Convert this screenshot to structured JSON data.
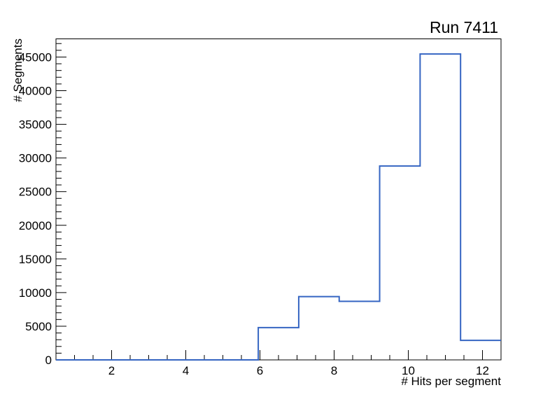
{
  "window": {
    "title": "Run 7411"
  },
  "chart_data": {
    "type": "bar",
    "style": "step-outline-histogram",
    "title": "Run 7411",
    "xlabel": "# Hits per segment",
    "ylabel": "# Segments",
    "xlim": [
      0.5,
      12.5
    ],
    "ylim": [
      0,
      47700
    ],
    "grid": false,
    "legend": "none",
    "bin_edges": [
      0.5,
      1.5909,
      2.6818,
      3.7727,
      4.8636,
      5.9545,
      7.0455,
      8.1364,
      9.2273,
      10.3182,
      11.4091,
      12.5
    ],
    "values": [
      0,
      0,
      0,
      0,
      0,
      4800,
      9400,
      8700,
      28800,
      45450,
      2900
    ],
    "x_major_ticks": [
      2,
      4,
      6,
      8,
      10,
      12
    ],
    "x_minor_tick_step": 0.5,
    "y_major_ticks": [
      0,
      5000,
      10000,
      15000,
      20000,
      25000,
      30000,
      35000,
      40000,
      45000
    ],
    "y_minor_tick_step": 1000,
    "line_color": "#3565c2",
    "axis_color": "#000000",
    "background_color": "#ffffff"
  }
}
